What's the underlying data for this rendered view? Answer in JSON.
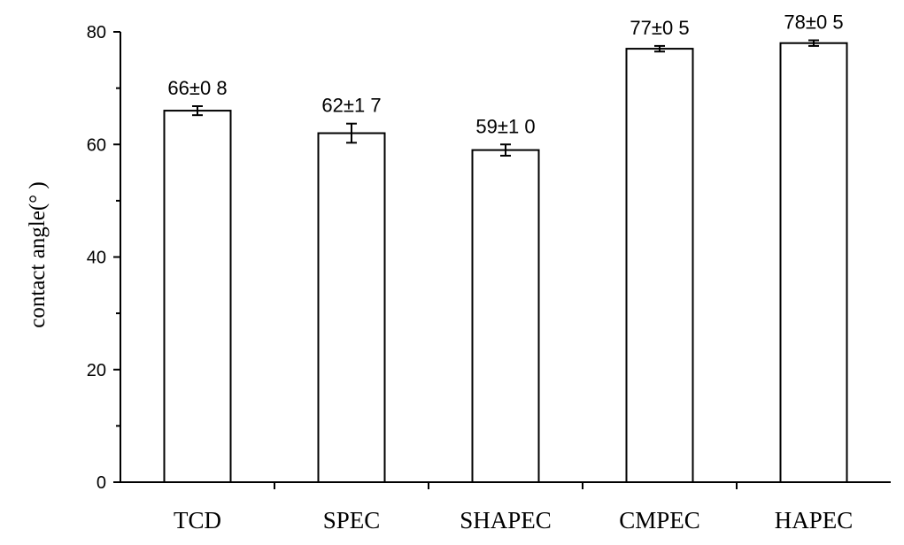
{
  "chart_data": {
    "type": "bar",
    "title": "",
    "xlabel": "",
    "ylabel": "contact angle(° )",
    "categories": [
      "TCD",
      "SPEC",
      "SHAPEC",
      "CMPEC",
      "HAPEC"
    ],
    "values": [
      66,
      62,
      59,
      77,
      78
    ],
    "errors": [
      0.8,
      1.7,
      1.0,
      0.5,
      0.5
    ],
    "data_labels": [
      "66±0 8",
      "62±1 7",
      "59±1 0",
      "77±0 5",
      "78±0 5"
    ],
    "ylim": [
      0,
      80
    ],
    "yticks": [
      0,
      20,
      40,
      60,
      80
    ],
    "grid": false,
    "bar_fill": "#ffffff",
    "bar_stroke": "#000000"
  }
}
